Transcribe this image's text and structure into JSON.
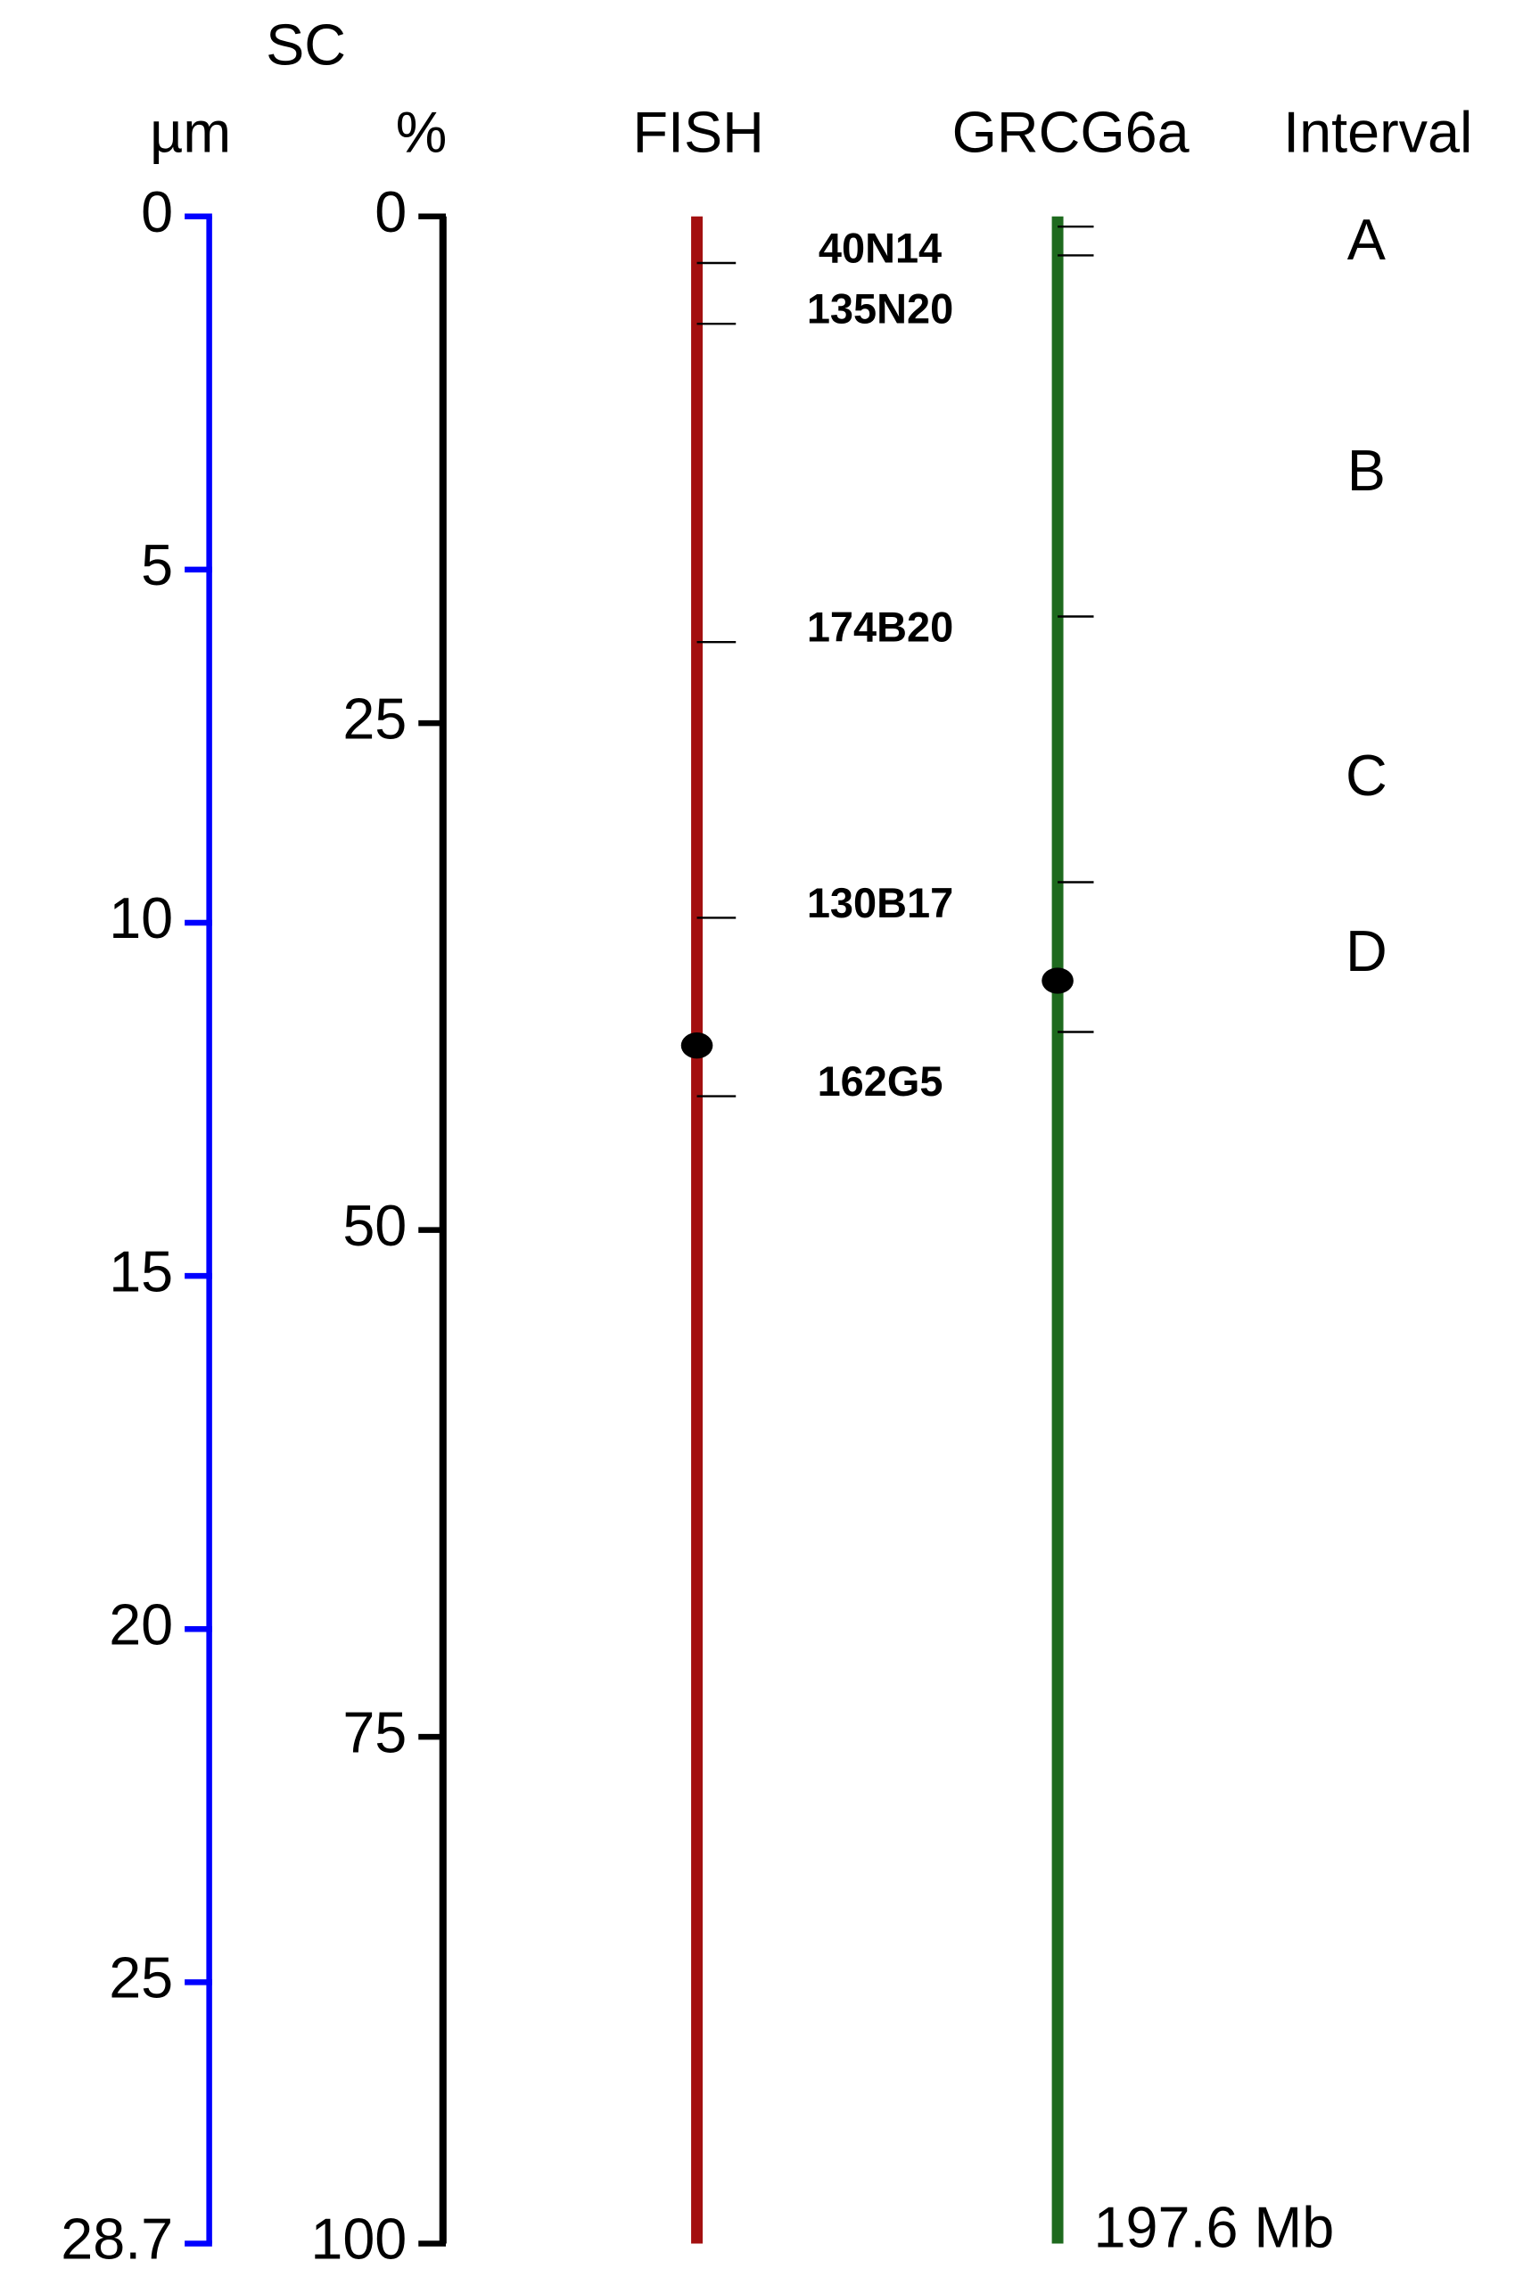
{
  "header": "SC",
  "um_axis": {
    "label": "µm",
    "lim": [
      0,
      28.7
    ],
    "ticks": [
      0,
      5,
      10,
      15,
      20,
      25,
      28.7
    ]
  },
  "percent_axis": {
    "label": "%",
    "lim": [
      0,
      100
    ],
    "ticks": [
      0,
      25,
      50,
      75,
      100
    ]
  },
  "fish": {
    "label": "FISH",
    "centromere": 40.9,
    "markers": [
      {
        "name": "40N14",
        "position": 2.3
      },
      {
        "name": "135N20",
        "position": 5.3
      },
      {
        "name": "174B20",
        "position": 21.0
      },
      {
        "name": "130B17",
        "position": 34.6
      },
      {
        "name": "162G5",
        "position": 43.4
      }
    ]
  },
  "grcg6a": {
    "label": "GRCG6a",
    "lim": [
      0,
      197.6
    ],
    "end_label": "197.6 Mb",
    "ticks": [
      1.0,
      3.8,
      39.0,
      64.9,
      79.5
    ],
    "centromere": 74.5
  },
  "intervals": {
    "label": "Interval",
    "items": [
      "A",
      "B",
      "C",
      "D"
    ]
  }
}
